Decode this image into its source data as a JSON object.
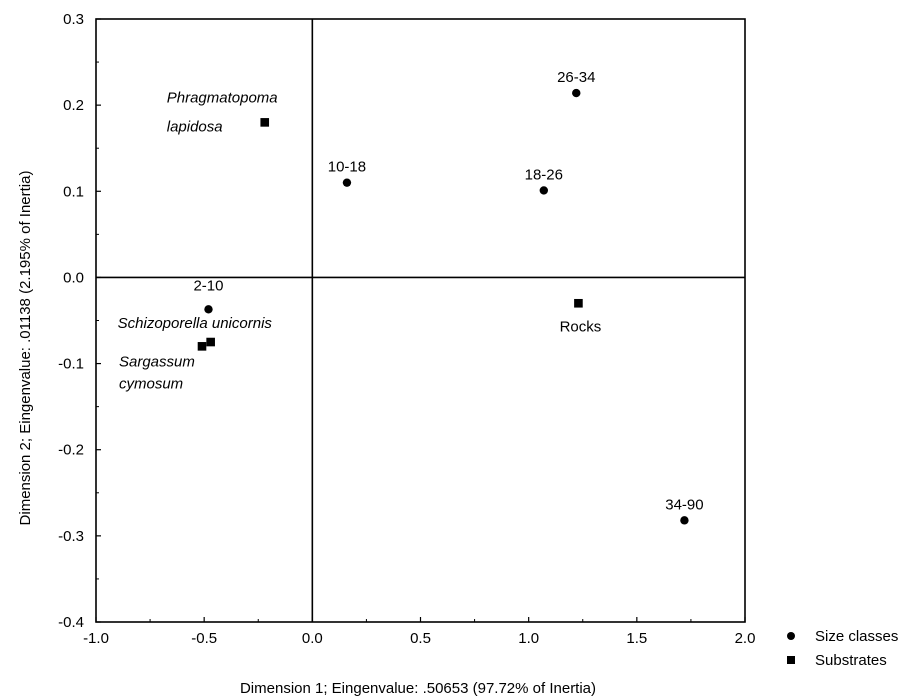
{
  "chart_data": {
    "type": "scatter",
    "xlabel": "Dimension 1; Eingenvalue: .50653 (97.72% of Inertia)",
    "ylabel": "Dimension 2; Eingenvalue: .01138 (2.195% of Inertia)",
    "xlim": [
      -1.0,
      2.0
    ],
    "ylim": [
      -0.4,
      0.3
    ],
    "x_ticks": [
      -1.0,
      -0.5,
      0.0,
      0.5,
      1.0,
      1.5,
      2.0
    ],
    "x_tick_labels": [
      "-1.0",
      "-0.5",
      "0.0",
      "0.5",
      "1.0",
      "1.5",
      "2.0"
    ],
    "y_ticks": [
      0.3,
      0.2,
      0.1,
      0.0,
      -0.1,
      -0.2,
      -0.3,
      -0.4
    ],
    "y_tick_labels": [
      "0.3",
      "0.2",
      "0.1",
      "0.0",
      "-0.1",
      "-0.2",
      "-0.3",
      "-0.4"
    ],
    "reference_lines": {
      "x": 0.0,
      "y": 0.0
    },
    "grid": false,
    "legend_position": "bottom-right, outside plot",
    "series": [
      {
        "name": "Size classes",
        "marker": "circle",
        "color": "#000000",
        "points": [
          {
            "label": "2-10",
            "x": -0.48,
            "y": -0.037
          },
          {
            "label": "10-18",
            "x": 0.16,
            "y": 0.11
          },
          {
            "label": "18-26",
            "x": 1.07,
            "y": 0.101
          },
          {
            "label": "26-34",
            "x": 1.22,
            "y": 0.214
          },
          {
            "label": "34-90",
            "x": 1.72,
            "y": -0.282
          }
        ]
      },
      {
        "name": "Substrates",
        "marker": "square",
        "color": "#000000",
        "points": [
          {
            "label": "Phragmatopoma\nlapidosa",
            "x": -0.22,
            "y": 0.18,
            "italic": true
          },
          {
            "label": "Rocks",
            "x": 1.23,
            "y": -0.03,
            "italic": false
          },
          {
            "label": "Schizoporella unicornis",
            "x": -0.47,
            "y": -0.075,
            "italic": true
          },
          {
            "label": "Sargassum\ncymosum",
            "x": -0.51,
            "y": -0.08,
            "italic": true
          }
        ]
      }
    ]
  }
}
